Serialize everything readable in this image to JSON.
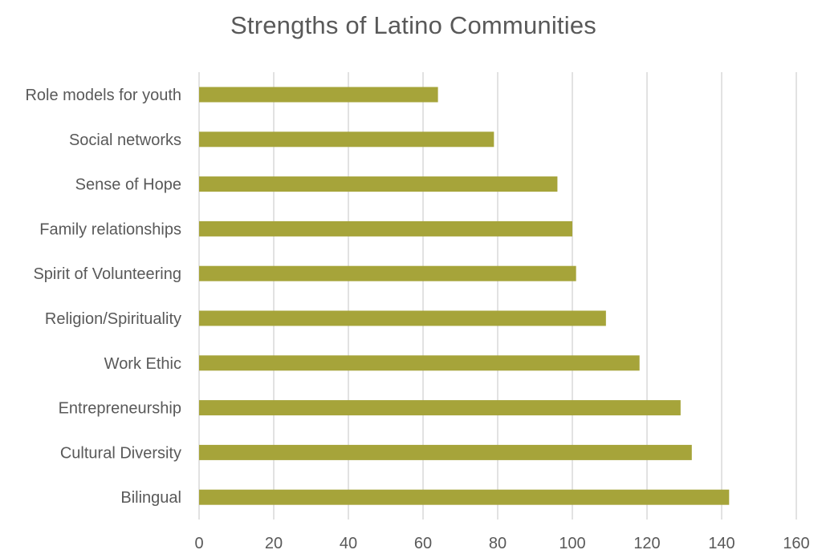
{
  "chart_data": {
    "type": "bar",
    "orientation": "horizontal",
    "title": "Strengths of Latino Communities",
    "categories": [
      "Role models for youth",
      "Social networks",
      "Sense of Hope",
      "Family relationships",
      "Spirit of Volunteering",
      "Religion/Spirituality",
      "Work Ethic",
      "Entrepreneurship",
      "Cultural Diversity",
      "Bilingual"
    ],
    "values": [
      64,
      79,
      96,
      100,
      101,
      109,
      118,
      129,
      132,
      142
    ],
    "xlim": [
      0,
      160
    ],
    "xticks": [
      0,
      20,
      40,
      60,
      80,
      100,
      120,
      140,
      160
    ],
    "grid": true,
    "legend": "none",
    "bar_color": "#A6A43A",
    "grid_color": "#D9D9D9",
    "text_color": "#595959"
  }
}
